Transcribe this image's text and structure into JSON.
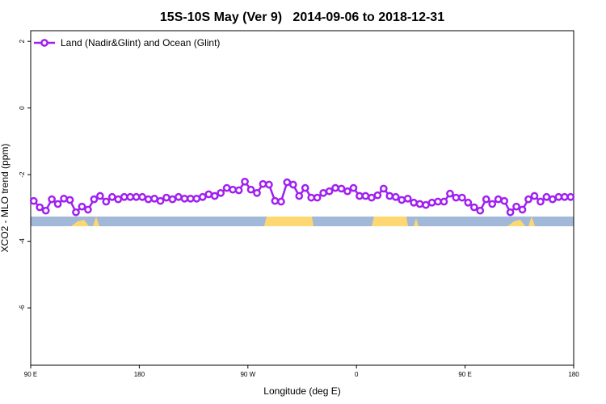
{
  "chart_data": {
    "type": "line",
    "title": "15S-10S May (Ver 9)   2014-09-06 to 2018-12-31",
    "xlabel": "Longitude (deg E)",
    "ylabel": "XCO2 - MLO trend (ppm)",
    "x": [
      92.5,
      97.5,
      102.5,
      107.5,
      112.5,
      117.5,
      122.5,
      127.5,
      132.5,
      137.5,
      142.5,
      147.5,
      152.5,
      157.5,
      162.5,
      167.5,
      172.5,
      177.5,
      182.5,
      187.5,
      192.5,
      197.5,
      202.5,
      207.5,
      212.5,
      217.5,
      222.5,
      227.5,
      232.5,
      237.5,
      242.5,
      247.5,
      252.5,
      257.5,
      262.5,
      267.5,
      272.5,
      277.5,
      282.5,
      287.5,
      292.5,
      297.5,
      302.5,
      307.5,
      312.5,
      317.5,
      322.5,
      327.5,
      332.5,
      337.5,
      342.5,
      347.5,
      352.5,
      357.5,
      362.5,
      367.5,
      372.5,
      377.5,
      382.5,
      387.5,
      392.5,
      397.5,
      402.5,
      407.5,
      412.5,
      417.5,
      422.5,
      427.5,
      432.5,
      437.5,
      442.5,
      447.5,
      452.5,
      457.5,
      462.5,
      467.5,
      472.5,
      477.5,
      482.5,
      487.5,
      492.5,
      497.5,
      502.5,
      507.5,
      512.5,
      517.5,
      522.5,
      527.5,
      532.5,
      537.5
    ],
    "series": [
      {
        "name": "Land (Nadir&Glint) and Ocean (Glint)",
        "color": "#a020f0",
        "values": [
          -2.79,
          -2.98,
          -3.08,
          -2.74,
          -2.88,
          -2.72,
          -2.76,
          -3.13,
          -2.96,
          -3.05,
          -2.74,
          -2.64,
          -2.81,
          -2.67,
          -2.74,
          -2.67,
          -2.67,
          -2.67,
          -2.67,
          -2.74,
          -2.72,
          -2.79,
          -2.69,
          -2.74,
          -2.67,
          -2.72,
          -2.72,
          -2.72,
          -2.67,
          -2.59,
          -2.64,
          -2.55,
          -2.4,
          -2.45,
          -2.47,
          -2.21,
          -2.45,
          -2.55,
          -2.28,
          -2.3,
          -2.79,
          -2.81,
          -2.23,
          -2.3,
          -2.64,
          -2.4,
          -2.69,
          -2.69,
          -2.55,
          -2.5,
          -2.4,
          -2.42,
          -2.5,
          -2.4,
          -2.64,
          -2.64,
          -2.69,
          -2.62,
          -2.42,
          -2.64,
          -2.67,
          -2.76,
          -2.72,
          -2.84,
          -2.88,
          -2.91,
          -2.84,
          -2.81,
          -2.81,
          -2.57,
          -2.69,
          -2.69,
          -2.84,
          -2.98,
          -3.08,
          -2.74,
          -2.88,
          -2.74,
          -2.79,
          -3.13,
          -2.96,
          -3.05,
          -2.74,
          -2.64,
          -2.81,
          -2.67,
          -2.74,
          -2.67,
          -2.67,
          -2.67
        ]
      }
    ],
    "xlim": [
      90,
      540
    ],
    "xticks": [
      {
        "value": 90,
        "label": "90 E"
      },
      180,
      {
        "value": 270,
        "label": "90 W"
      },
      {
        "value": 360,
        "label": "0"
      },
      {
        "value": 450,
        "label": "90 E"
      },
      {
        "value": 540,
        "label": "180"
      }
    ],
    "ylim": [
      -7.72,
      2.32
    ],
    "yticks": [
      2,
      0,
      -2,
      -4,
      -6
    ],
    "legend": "top-left"
  }
}
